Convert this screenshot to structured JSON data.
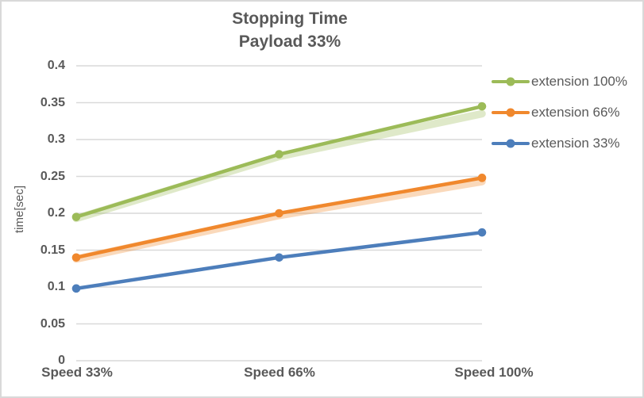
{
  "window": {
    "background": "#ffffff",
    "border_color": "#d9d9d9"
  },
  "chart_data": {
    "type": "line",
    "title": "Stopping Time",
    "subtitle": "Payload 33%",
    "ylabel": "time[sec]",
    "xlabel": "",
    "categories": [
      "Speed 33%",
      "Speed 66%",
      "Speed 100%"
    ],
    "series": [
      {
        "name": "extension 100%",
        "color": "#9cbb58",
        "values": [
          0.195,
          0.28,
          0.345
        ],
        "trend": [
          0.193,
          0.277,
          0.335
        ]
      },
      {
        "name": "extension 66%",
        "color": "#f0882d",
        "values": [
          0.14,
          0.2,
          0.248
        ],
        "trend": [
          0.138,
          0.197,
          0.243
        ]
      },
      {
        "name": "extension 33%",
        "color": "#4d7ebb",
        "values": [
          0.098,
          0.14,
          0.174
        ]
      }
    ],
    "ylim": [
      0,
      0.4
    ],
    "ytick_step": 0.05,
    "yticks": [
      "0",
      "0.05",
      "0.1",
      "0.15",
      "0.2",
      "0.25",
      "0.3",
      "0.35",
      "0.4"
    ],
    "grid": true,
    "legend_position": "top-right",
    "colors": {
      "grid": "#d9d9d9",
      "text": "#595959"
    }
  }
}
